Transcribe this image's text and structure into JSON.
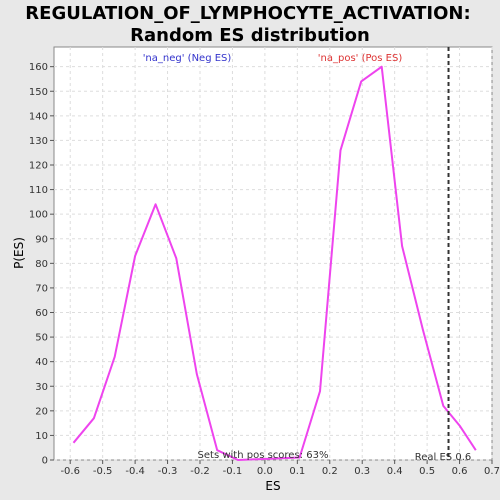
{
  "chart_data": {
    "type": "line",
    "title": "REGULATION_OF_LYMPHOCYTE_ACTIVATION:",
    "subtitle": "Random ES distribution",
    "xlabel": "ES",
    "ylabel": "P(ES)",
    "xlim": [
      -0.65,
      0.7
    ],
    "ylim": [
      0,
      168
    ],
    "xticks": [
      -0.6,
      -0.5,
      -0.4,
      -0.3,
      -0.2,
      -0.1,
      0.0,
      0.1,
      0.2,
      0.3,
      0.4,
      0.5,
      0.6,
      0.7
    ],
    "xtick_labels": [
      "-0.6",
      "-0.5",
      "-0.4",
      "-0.3",
      "-0.2",
      "-0.1",
      "0.0",
      "0.1",
      "0.2",
      "0.3",
      "0.4",
      "0.5",
      "0.6",
      "0.7"
    ],
    "yticks": [
      0,
      10,
      20,
      30,
      40,
      50,
      60,
      70,
      80,
      90,
      100,
      110,
      120,
      130,
      140,
      150,
      160
    ],
    "ytick_labels": [
      "0",
      "10",
      "20",
      "30",
      "40",
      "50",
      "60",
      "70",
      "80",
      "90",
      "100",
      "110",
      "120",
      "130",
      "140",
      "150",
      "160"
    ],
    "grid": true,
    "series": [
      {
        "color": "#ee44ee",
        "x": [
          -0.59,
          -0.527,
          -0.463,
          -0.4,
          -0.337,
          -0.273,
          -0.21,
          -0.147,
          -0.083,
          0.107,
          0.17,
          0.233,
          0.297,
          0.36,
          0.423,
          0.487,
          0.55,
          0.6,
          0.65
        ],
        "y": [
          7,
          17,
          42,
          83,
          104,
          82,
          35,
          4,
          0,
          1,
          28,
          126,
          154,
          160,
          87,
          53,
          22,
          14,
          4
        ]
      }
    ],
    "annotations": {
      "neg_label": "'na_neg' (Neg ES)",
      "pos_label": "'na_pos' (Pos ES)",
      "pos_scores_label": "Sets with pos scores: 63%",
      "real_es_label": "Real ES 0.6",
      "real_es_value": 0.566,
      "neg_color": "#3333cc",
      "pos_color": "#dd3333"
    }
  }
}
